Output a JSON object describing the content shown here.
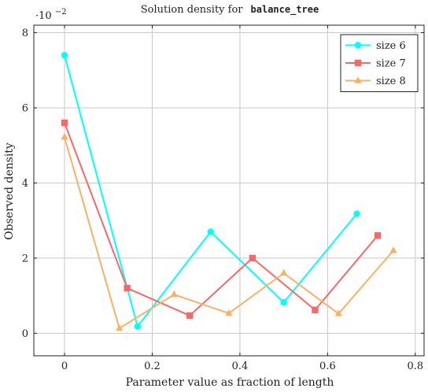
{
  "chart_data": {
    "type": "line",
    "title_prefix": "Solution density for",
    "title_code": "balance_tree",
    "xlabel": "Parameter value as fraction of length",
    "ylabel": "Observed density",
    "y_scale_note_base": "·10",
    "y_scale_note_exp": "−2",
    "xlim": [
      -0.07,
      0.82
    ],
    "ylim": [
      -0.6,
      8.2
    ],
    "x_ticks": [
      0,
      0.2,
      0.4,
      0.6,
      0.8
    ],
    "x_tick_labels": [
      "0",
      "0.2",
      "0.4",
      "0.6",
      "0.8"
    ],
    "y_ticks": [
      0,
      2,
      4,
      6,
      8
    ],
    "y_tick_labels": [
      "0",
      "2",
      "4",
      "6",
      "8"
    ],
    "grid": true,
    "legend_position": "top-right",
    "series": [
      {
        "name": "size 6",
        "color": "#00ffff",
        "marker": "circle",
        "x": [
          0,
          0.1667,
          0.3333,
          0.5,
          0.6667
        ],
        "y": [
          7.4,
          0.18,
          2.7,
          0.82,
          3.18
        ]
      },
      {
        "name": "size 7",
        "color": "#f86868",
        "marker": "square",
        "x": [
          0,
          0.1429,
          0.2857,
          0.4286,
          0.5714,
          0.7143
        ],
        "y": [
          5.6,
          1.2,
          0.47,
          2.0,
          0.62,
          2.6
        ]
      },
      {
        "name": "size 8",
        "color": "#fbb163",
        "marker": "triangle",
        "x": [
          0,
          0.125,
          0.25,
          0.375,
          0.5,
          0.625,
          0.75
        ],
        "y": [
          5.22,
          0.13,
          1.03,
          0.53,
          1.6,
          0.52,
          2.2
        ]
      }
    ]
  }
}
